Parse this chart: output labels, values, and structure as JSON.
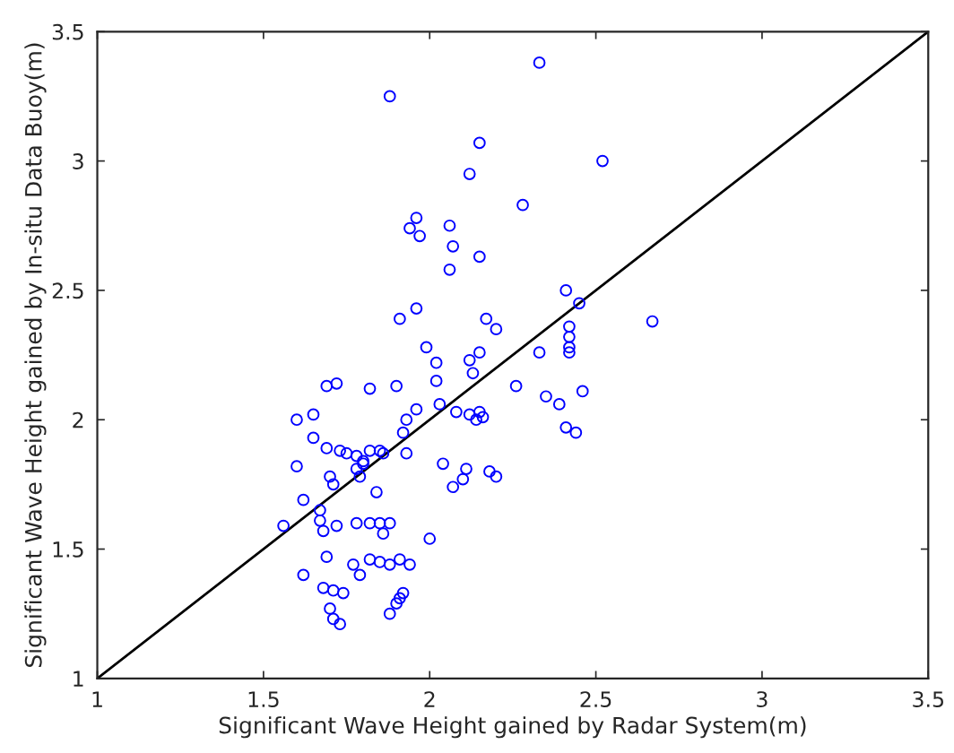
{
  "chart_data": {
    "type": "scatter",
    "xlabel": "Significant Wave Height gained by Radar System(m)",
    "ylabel": "Significant Wave Height gained by In-situ Data Buoy(m)",
    "xlim": [
      1,
      3.5
    ],
    "ylim": [
      1,
      3.5
    ],
    "xticks": [
      1,
      1.5,
      2,
      2.5,
      3,
      3.5
    ],
    "yticks": [
      1,
      1.5,
      2,
      2.5,
      3,
      3.5
    ],
    "grid": false,
    "legend": false,
    "marker": "circle",
    "series": [
      {
        "color": "#0000ff",
        "x": [
          1.88,
          2.33,
          2.15,
          2.52,
          2.12,
          2.28,
          1.96,
          1.94,
          1.97,
          2.06,
          2.07,
          2.15,
          2.06,
          2.41,
          2.45,
          1.96,
          1.91,
          2.17,
          2.2,
          2.67,
          2.42,
          2.42,
          2.42,
          2.42,
          2.33,
          1.99,
          2.02,
          2.02,
          2.15,
          2.12,
          2.13,
          2.26,
          2.46,
          2.35,
          2.39,
          2.41,
          2.44,
          2.08,
          2.12,
          2.15,
          2.14,
          2.16,
          2.03,
          1.96,
          1.93,
          1.92,
          1.93,
          2.04,
          2.11,
          2.1,
          2.07,
          2.18,
          2.2,
          1.69,
          1.72,
          1.82,
          1.9,
          1.6,
          1.65,
          1.65,
          1.69,
          1.73,
          1.75,
          1.78,
          1.8,
          1.82,
          1.85,
          1.86,
          1.78,
          1.8,
          1.79,
          1.6,
          1.7,
          1.71,
          1.84,
          1.62,
          1.67,
          1.56,
          1.67,
          1.68,
          1.72,
          1.78,
          1.82,
          1.85,
          1.88,
          1.86,
          2.0,
          1.69,
          1.62,
          1.77,
          1.79,
          1.82,
          1.85,
          1.88,
          1.91,
          1.94,
          1.68,
          1.71,
          1.74,
          1.7,
          1.71,
          1.73,
          1.88,
          1.9,
          1.91,
          1.92
        ],
        "values": [
          3.25,
          3.38,
          3.07,
          3.0,
          2.95,
          2.83,
          2.78,
          2.74,
          2.71,
          2.75,
          2.67,
          2.63,
          2.58,
          2.5,
          2.45,
          2.43,
          2.39,
          2.39,
          2.35,
          2.38,
          2.36,
          2.32,
          2.28,
          2.26,
          2.26,
          2.28,
          2.22,
          2.15,
          2.26,
          2.23,
          2.18,
          2.13,
          2.11,
          2.09,
          2.06,
          1.97,
          1.95,
          2.03,
          2.02,
          2.03,
          2.0,
          2.01,
          2.06,
          2.04,
          2.0,
          1.95,
          1.87,
          1.83,
          1.81,
          1.77,
          1.74,
          1.8,
          1.78,
          2.13,
          2.14,
          2.12,
          2.13,
          2.0,
          2.02,
          1.93,
          1.89,
          1.88,
          1.87,
          1.86,
          1.84,
          1.88,
          1.88,
          1.87,
          1.81,
          1.83,
          1.78,
          1.82,
          1.78,
          1.75,
          1.72,
          1.69,
          1.65,
          1.59,
          1.61,
          1.57,
          1.59,
          1.6,
          1.6,
          1.6,
          1.6,
          1.56,
          1.54,
          1.47,
          1.4,
          1.44,
          1.4,
          1.46,
          1.45,
          1.44,
          1.46,
          1.44,
          1.35,
          1.34,
          1.33,
          1.27,
          1.23,
          1.21,
          1.25,
          1.29,
          1.31,
          1.33
        ]
      },
      {
        "type": "line",
        "color": "#000000",
        "marker": "none",
        "line_style": "solid",
        "x": [
          1,
          3.5
        ],
        "values": [
          1,
          3.5
        ]
      }
    ]
  }
}
